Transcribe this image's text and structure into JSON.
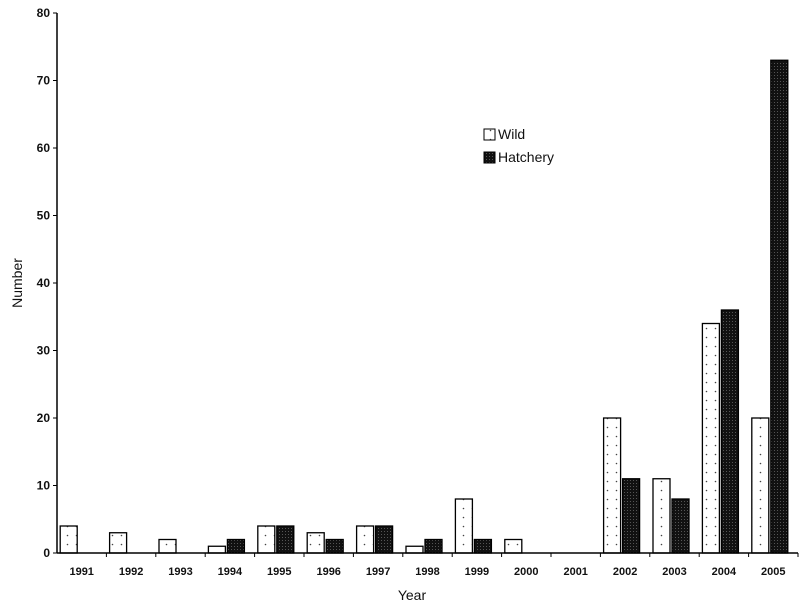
{
  "chart_data": {
    "type": "bar",
    "xlabel": "Year",
    "ylabel": "Number",
    "ylim": [
      0,
      80
    ],
    "yticks": [
      0,
      10,
      20,
      30,
      40,
      50,
      60,
      70,
      80
    ],
    "grid": false,
    "legend_position": "upper-center",
    "categories": [
      "1991",
      "1992",
      "1993",
      "1994",
      "1995",
      "1996",
      "1997",
      "1998",
      "1999",
      "2000",
      "2001",
      "2002",
      "2003",
      "2004",
      "2005"
    ],
    "series": [
      {
        "name": "Wild",
        "color": "#ffffff",
        "pattern": "dotted",
        "values": [
          4,
          3,
          2,
          1,
          4,
          3,
          4,
          1,
          8,
          2,
          0,
          20,
          11,
          34,
          20
        ]
      },
      {
        "name": "Hatchery",
        "color": "#111111",
        "pattern": "solid",
        "values": [
          0,
          0,
          0,
          2,
          4,
          2,
          4,
          2,
          2,
          0,
          0,
          11,
          8,
          36,
          73
        ]
      }
    ]
  }
}
